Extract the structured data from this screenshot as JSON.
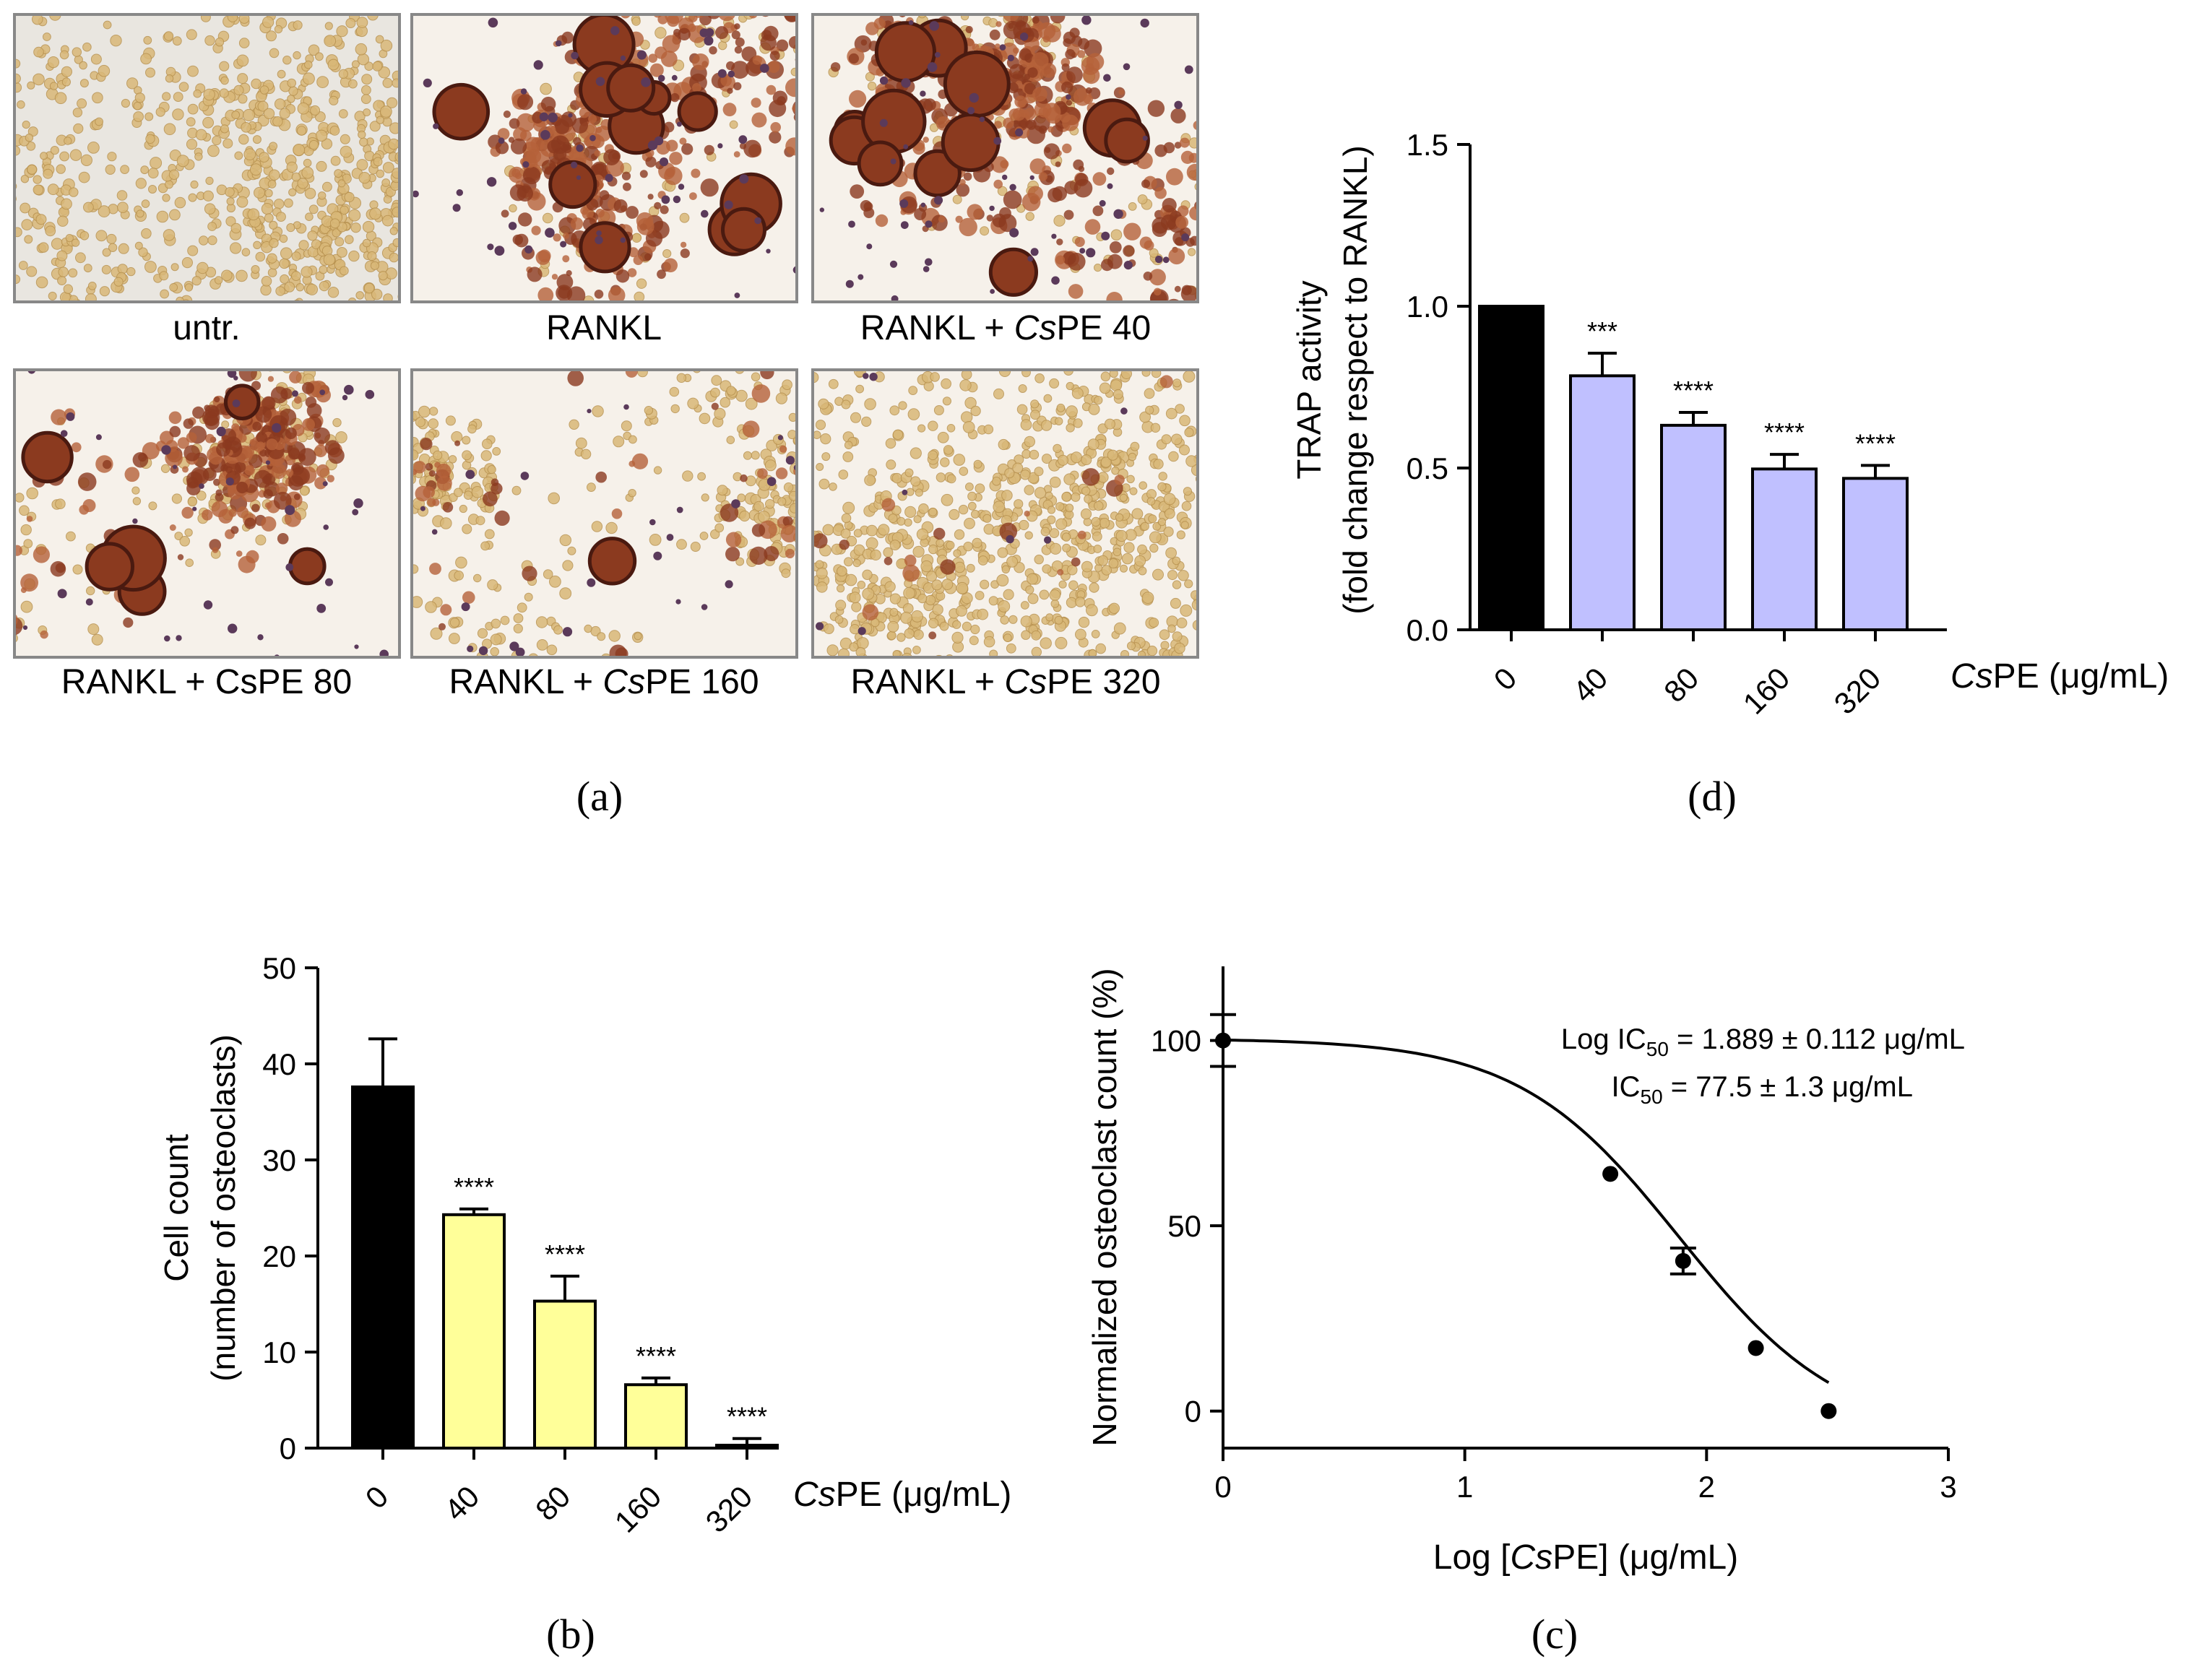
{
  "panel_a": {
    "letter": "(a)",
    "images": [
      {
        "label": "untr.",
        "label_parts": [
          {
            "t": "untr.",
            "i": false
          }
        ],
        "style": "untreated"
      },
      {
        "label": "RANKL",
        "label_parts": [
          {
            "t": "RANKL",
            "i": false
          }
        ],
        "style": "dense"
      },
      {
        "label": "RANKL + CsPE 40",
        "label_parts": [
          {
            "t": "RANKL + ",
            "i": false
          },
          {
            "t": "Cs",
            "i": true
          },
          {
            "t": "PE 40",
            "i": false
          }
        ],
        "style": "dense"
      },
      {
        "label": "RANKL + CsPE 80",
        "label_parts": [
          {
            "t": "RANKL + CsPE 80",
            "i": false
          }
        ],
        "style": "medium"
      },
      {
        "label": "RANKL + CsPE 160",
        "label_parts": [
          {
            "t": "RANKL + ",
            "i": false
          },
          {
            "t": "Cs",
            "i": true
          },
          {
            "t": "PE 160",
            "i": false
          }
        ],
        "style": "light"
      },
      {
        "label": "RANKL + CsPE 320",
        "label_parts": [
          {
            "t": "RANKL + ",
            "i": false
          },
          {
            "t": "Cs",
            "i": true
          },
          {
            "t": "PE 320",
            "i": false
          }
        ],
        "style": "sparse"
      }
    ],
    "colors": {
      "tan": "#d9b878",
      "brown": "#8b3a1f",
      "dark": "#4a1a10",
      "purple": "#5b3a5a",
      "bg_untr": "#e9e6e0",
      "bg": "#f6f1ea"
    }
  },
  "panel_b": {
    "letter": "(b)",
    "chart_data": {
      "type": "bar",
      "categories": [
        "0",
        "40",
        "80",
        "160",
        "320"
      ],
      "values": [
        37.6,
        24.3,
        15.3,
        6.6,
        0.3
      ],
      "errors": [
        5.0,
        0.6,
        2.6,
        0.7,
        0.7
      ],
      "significance": [
        "",
        "****",
        "****",
        "****",
        "****"
      ],
      "bar_colors": [
        "#000000",
        "#ffff99",
        "#ffff99",
        "#ffff99",
        "#ffff99"
      ],
      "ylim": [
        0,
        50
      ],
      "yticks": [
        0,
        10,
        20,
        30,
        40,
        50
      ],
      "ylabel_line1": "Cell count",
      "ylabel_line2": "(number of osteoclasts)",
      "xlabel": "CsPE (μg/mL)"
    }
  },
  "panel_c": {
    "letter": "(c)",
    "chart_data": {
      "type": "scatter",
      "x": [
        0,
        1.602,
        1.903,
        2.204,
        2.505
      ],
      "y": [
        100,
        64,
        40.5,
        17,
        0
      ],
      "errors": [
        7,
        1,
        3.5,
        0.6,
        0.6
      ],
      "fit": {
        "model": "sigmoid",
        "top": 100.5,
        "bottom": -7,
        "logIC50": 1.889,
        "hill": -1.3
      },
      "xlim": [
        0,
        3
      ],
      "ylim": [
        -10,
        120
      ],
      "xticks": [
        0,
        1,
        2,
        3
      ],
      "yticks": [
        0,
        50,
        100
      ],
      "xlabel": "Log [CsPE] (μg/mL)",
      "ylabel": "Normalized osteoclast count (%)",
      "annotation_1": "Log IC50 = 1.889 ± 0.112 μg/mL",
      "annotation_2": "IC50 = 77.5 ± 1.3 μg/mL"
    }
  },
  "panel_d": {
    "letter": "(d)",
    "chart_data": {
      "type": "bar",
      "categories": [
        "0",
        "40",
        "80",
        "160",
        "320"
      ],
      "values": [
        1.0,
        0.785,
        0.632,
        0.497,
        0.468
      ],
      "errors": [
        0,
        0.07,
        0.04,
        0.045,
        0.04
      ],
      "significance": [
        "",
        "***",
        "****",
        "****",
        "****"
      ],
      "bar_colors": [
        "#000000",
        "#c0c0ff",
        "#c0c0ff",
        "#c0c0ff",
        "#c0c0ff"
      ],
      "ylim": [
        0,
        1.5
      ],
      "yticks": [
        "0.0",
        "0.5",
        "1.0",
        "1.5"
      ],
      "ylabel_line1": "TRAP activity",
      "ylabel_line2": "(fold change respect to RANKL)",
      "xlabel": "CsPE (μg/mL)"
    }
  }
}
